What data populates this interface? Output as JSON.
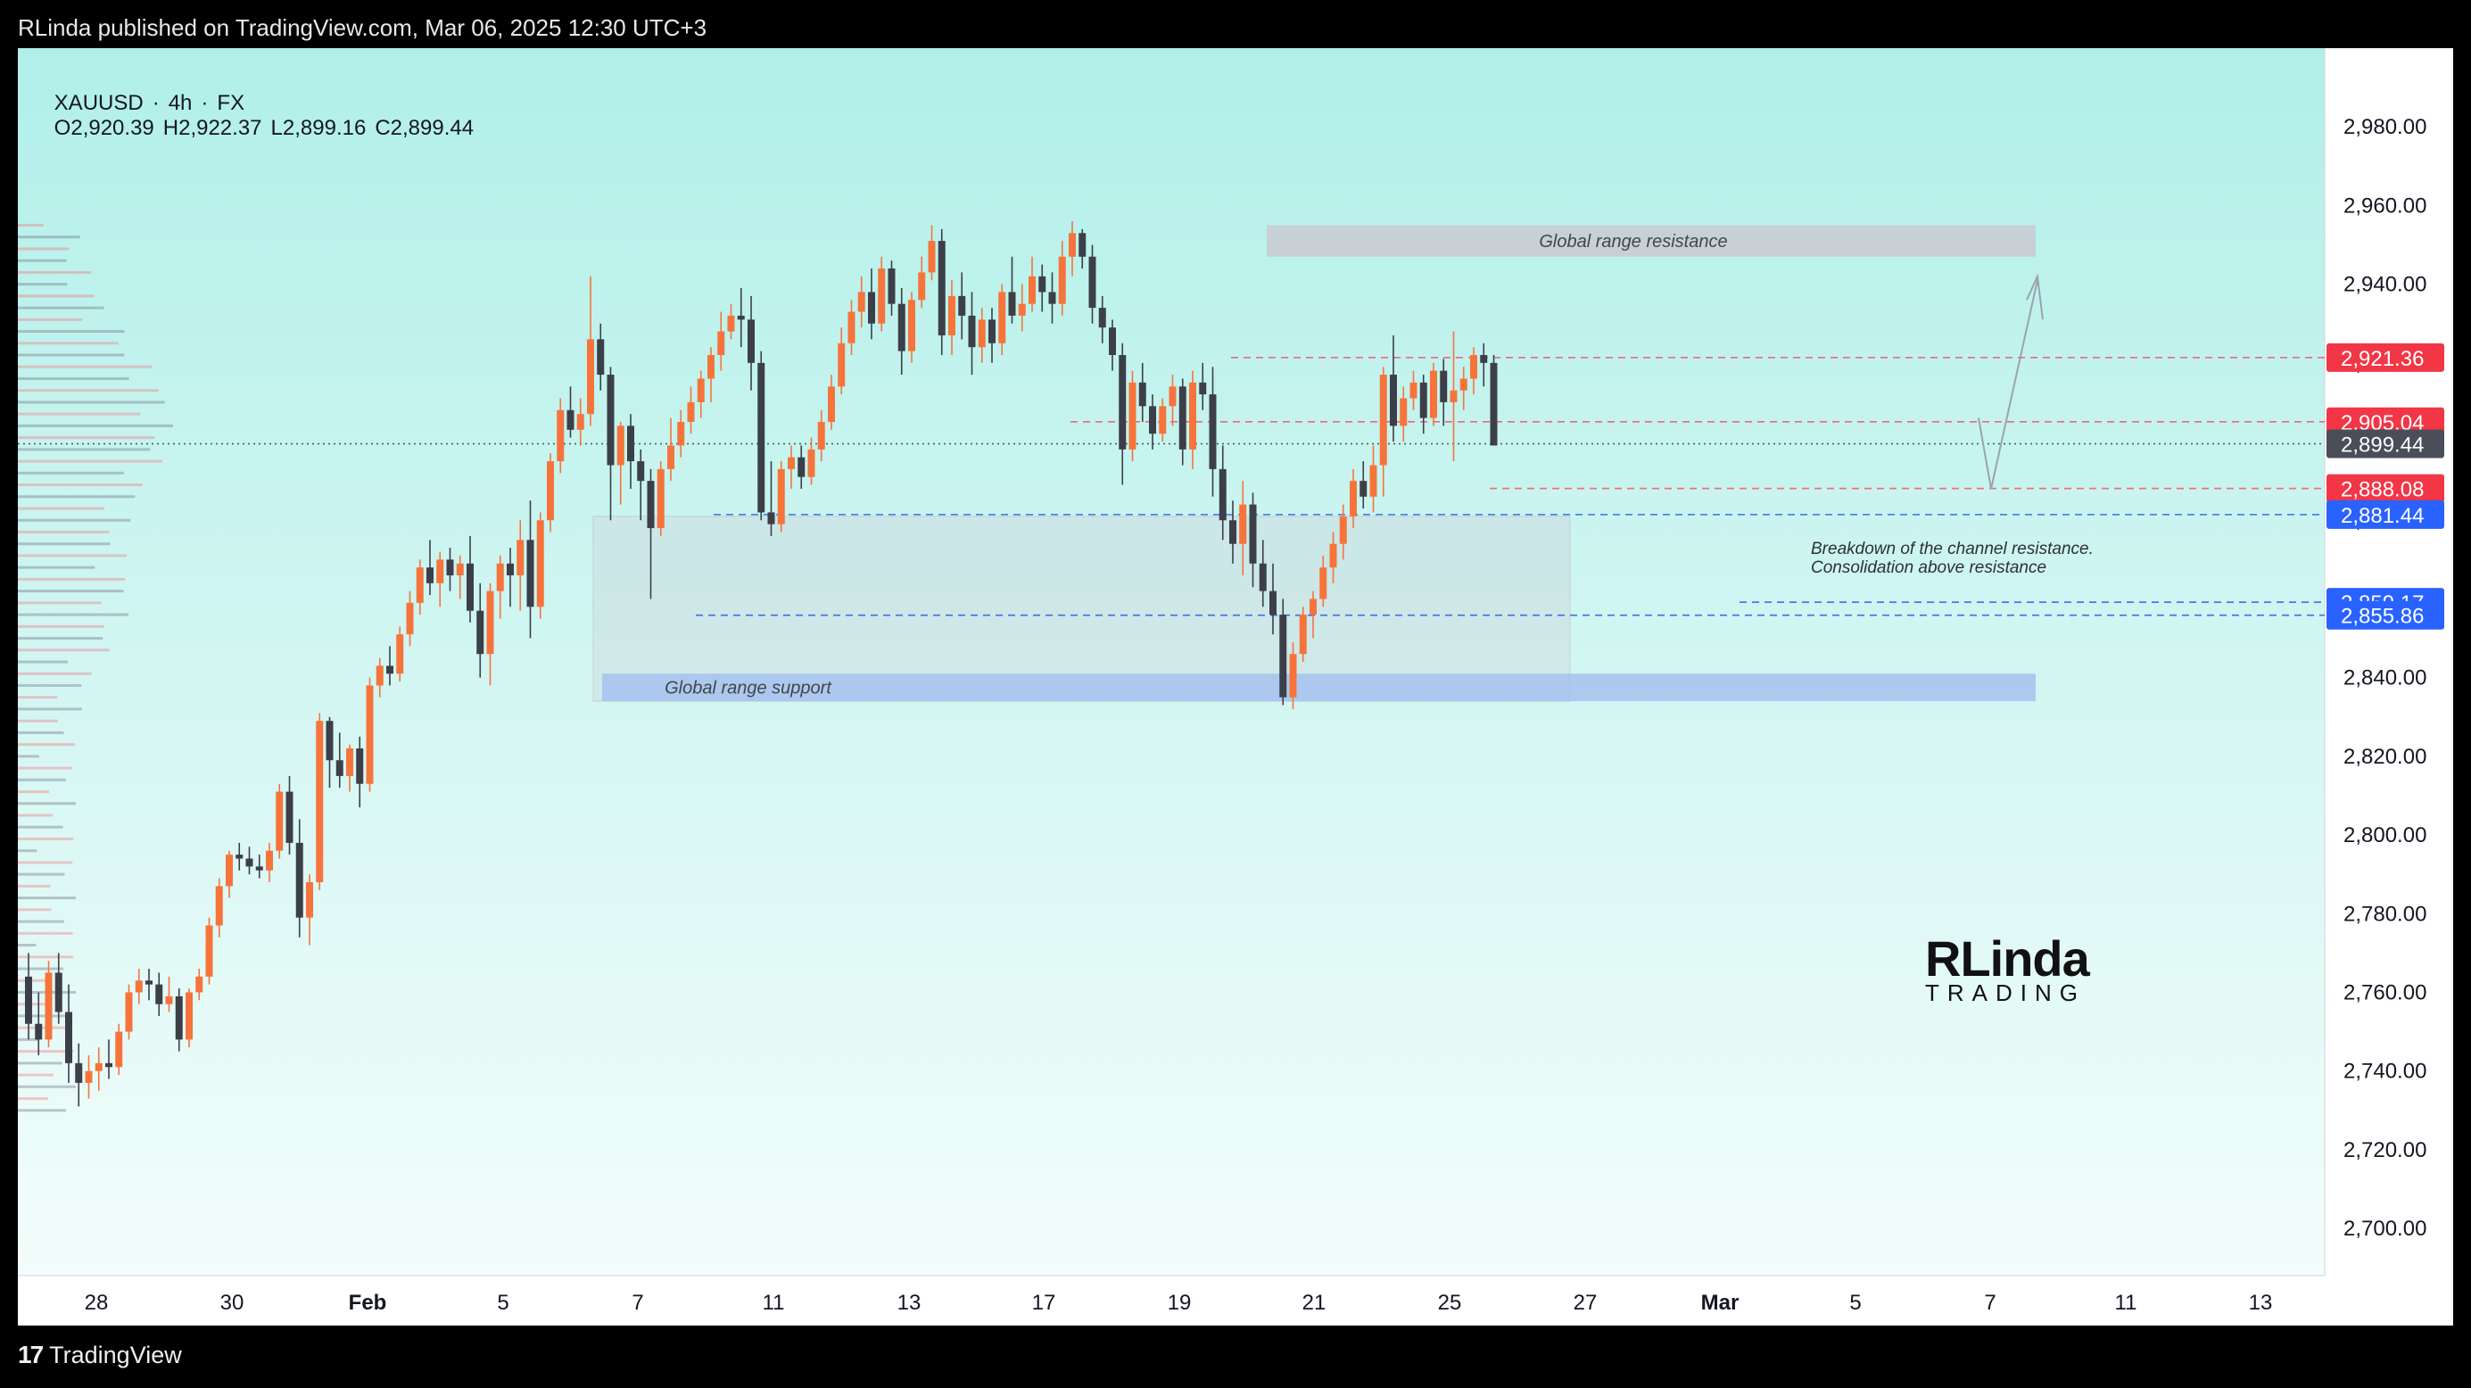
{
  "header": {
    "publish_line": "RLinda published on TradingView.com, Mar 06, 2025 12:30 UTC+3"
  },
  "symbol": {
    "name": "XAUUSD",
    "sep1": "·",
    "timeframe": "4h",
    "sep2": "·",
    "source": "FX",
    "open": "O2,920.39",
    "high": "H2,922.37",
    "low": "L2,899.16",
    "close": "C2,899.44"
  },
  "brand": {
    "big": "RLinda",
    "small": "TRADING"
  },
  "footer": {
    "logo_text": "TradingView",
    "logo_mark": "17"
  },
  "colors": {
    "bg_top": "#b1efe9",
    "bg_bottom": "#f3fdfb",
    "bull": "#f6743b",
    "bear": "#3c3f48",
    "red_badge": "#f23645",
    "blue_badge": "#2962ff",
    "last_badge": "#4a4e59",
    "red_dash": "#f0697a",
    "blue_dash": "#3d6cf0"
  },
  "chart_data": {
    "type": "candlestick",
    "title": "XAUUSD · 4h · FX",
    "ylim": [
      2688,
      3000
    ],
    "y_ticks": [
      "2,700.00",
      "2,720.00",
      "2,740.00",
      "2,760.00",
      "2,780.00",
      "2,800.00",
      "2,820.00",
      "2,840.00",
      "2,860.00",
      "2,880.00",
      "2,900.00",
      "2,920.00",
      "2,940.00",
      "2,960.00",
      "2,980.00"
    ],
    "x_ticks": [
      "28",
      "30",
      "Feb",
      "5",
      "7",
      "11",
      "13",
      "17",
      "19",
      "21",
      "25",
      "27",
      "Mar",
      "5",
      "7",
      "11",
      "13"
    ],
    "zones": [
      {
        "label": "Global range resistance",
        "from_tick": "21",
        "to_tick": "Mar",
        "low": 2947,
        "high": 2955,
        "color": "#c9ccd1"
      },
      {
        "label": "Global range support",
        "from_tick": "7",
        "to_tick": "Mar",
        "low": 2834,
        "high": 2841,
        "color": "#a8c4ee"
      }
    ],
    "consolidation_box": {
      "low": 2834,
      "high": 2881
    },
    "annotations": [
      "Breakdown of the channel resistance.",
      "Consolidation above resistance"
    ],
    "price_levels": [
      {
        "price": 2921.36,
        "label": "2,921.36",
        "kind": "red"
      },
      {
        "price": 2905.04,
        "label": "2,905.04",
        "kind": "red"
      },
      {
        "price": 2899.44,
        "label": "2,899.44",
        "kind": "last"
      },
      {
        "price": 2888.08,
        "label": "2,888.08",
        "kind": "red"
      },
      {
        "price": 2881.44,
        "label": "2,881.44",
        "kind": "blue"
      },
      {
        "price": 2859.17,
        "label": "2,859.17",
        "kind": "blue"
      },
      {
        "price": 2855.86,
        "label": "2,855.86",
        "kind": "blue"
      }
    ],
    "candles": [
      [
        2764,
        2770,
        2748,
        2752
      ],
      [
        2752,
        2760,
        2744,
        2748
      ],
      [
        2748,
        2768,
        2746,
        2765
      ],
      [
        2765,
        2770,
        2752,
        2755
      ],
      [
        2755,
        2762,
        2737,
        2742
      ],
      [
        2742,
        2747,
        2731,
        2737
      ],
      [
        2737,
        2744,
        2733,
        2740
      ],
      [
        2740,
        2746,
        2735,
        2742
      ],
      [
        2742,
        2748,
        2738,
        2741
      ],
      [
        2741,
        2752,
        2739,
        2750
      ],
      [
        2750,
        2762,
        2748,
        2760
      ],
      [
        2760,
        2766,
        2757,
        2763
      ],
      [
        2763,
        2766,
        2758,
        2762
      ],
      [
        2762,
        2765,
        2754,
        2757
      ],
      [
        2757,
        2764,
        2755,
        2759
      ],
      [
        2759,
        2761,
        2745,
        2748
      ],
      [
        2748,
        2761,
        2746,
        2760
      ],
      [
        2760,
        2766,
        2758,
        2764
      ],
      [
        2764,
        2779,
        2762,
        2777
      ],
      [
        2777,
        2789,
        2774,
        2787
      ],
      [
        2787,
        2796,
        2784,
        2795
      ],
      [
        2795,
        2798,
        2791,
        2794
      ],
      [
        2794,
        2797,
        2790,
        2792
      ],
      [
        2792,
        2795,
        2789,
        2791
      ],
      [
        2791,
        2798,
        2788,
        2796
      ],
      [
        2796,
        2813,
        2794,
        2811
      ],
      [
        2811,
        2815,
        2795,
        2798
      ],
      [
        2798,
        2804,
        2774,
        2779
      ],
      [
        2779,
        2790,
        2772,
        2788
      ],
      [
        2788,
        2831,
        2786,
        2829
      ],
      [
        2829,
        2830,
        2812,
        2819
      ],
      [
        2819,
        2826,
        2812,
        2815
      ],
      [
        2815,
        2823,
        2811,
        2822
      ],
      [
        2822,
        2825,
        2807,
        2813
      ],
      [
        2813,
        2840,
        2811,
        2838
      ],
      [
        2838,
        2845,
        2835,
        2843
      ],
      [
        2843,
        2848,
        2838,
        2841
      ],
      [
        2841,
        2853,
        2839,
        2851
      ],
      [
        2851,
        2862,
        2848,
        2859
      ],
      [
        2859,
        2870,
        2856,
        2868
      ],
      [
        2868,
        2875,
        2861,
        2864
      ],
      [
        2864,
        2872,
        2858,
        2870
      ],
      [
        2870,
        2873,
        2862,
        2866
      ],
      [
        2866,
        2871,
        2860,
        2869
      ],
      [
        2869,
        2876,
        2854,
        2857
      ],
      [
        2857,
        2864,
        2840,
        2846
      ],
      [
        2846,
        2864,
        2838,
        2862
      ],
      [
        2862,
        2871,
        2855,
        2869
      ],
      [
        2869,
        2873,
        2858,
        2866
      ],
      [
        2866,
        2880,
        2857,
        2875
      ],
      [
        2875,
        2885,
        2850,
        2858
      ],
      [
        2858,
        2882,
        2855,
        2880
      ],
      [
        2880,
        2897,
        2877,
        2895
      ],
      [
        2895,
        2911,
        2892,
        2908
      ],
      [
        2908,
        2914,
        2901,
        2903
      ],
      [
        2903,
        2911,
        2899,
        2907
      ],
      [
        2907,
        2942,
        2904,
        2926
      ],
      [
        2926,
        2930,
        2913,
        2917
      ],
      [
        2917,
        2919,
        2880,
        2894
      ],
      [
        2894,
        2905,
        2884,
        2904
      ],
      [
        2904,
        2907,
        2888,
        2895
      ],
      [
        2895,
        2898,
        2880,
        2890
      ],
      [
        2890,
        2893,
        2860,
        2878
      ],
      [
        2878,
        2895,
        2876,
        2893
      ],
      [
        2893,
        2906,
        2890,
        2899
      ],
      [
        2899,
        2908,
        2896,
        2905
      ],
      [
        2905,
        2914,
        2902,
        2910
      ],
      [
        2910,
        2918,
        2906,
        2916
      ],
      [
        2916,
        2924,
        2910,
        2922
      ],
      [
        2922,
        2933,
        2918,
        2928
      ],
      [
        2928,
        2935,
        2926,
        2932
      ],
      [
        2932,
        2939,
        2924,
        2931
      ],
      [
        2931,
        2937,
        2913,
        2920
      ],
      [
        2920,
        2923,
        2880,
        2882
      ],
      [
        2882,
        2895,
        2876,
        2879
      ],
      [
        2879,
        2895,
        2877,
        2893
      ],
      [
        2893,
        2899,
        2888,
        2896
      ],
      [
        2896,
        2899,
        2888,
        2891
      ],
      [
        2891,
        2901,
        2889,
        2898
      ],
      [
        2898,
        2908,
        2895,
        2905
      ],
      [
        2905,
        2917,
        2903,
        2914
      ],
      [
        2914,
        2929,
        2912,
        2925
      ],
      [
        2925,
        2936,
        2922,
        2933
      ],
      [
        2933,
        2942,
        2929,
        2938
      ],
      [
        2938,
        2944,
        2926,
        2930
      ],
      [
        2930,
        2947,
        2928,
        2944
      ],
      [
        2944,
        2946,
        2932,
        2935
      ],
      [
        2935,
        2939,
        2917,
        2923
      ],
      [
        2923,
        2938,
        2920,
        2936
      ],
      [
        2936,
        2947,
        2934,
        2943
      ],
      [
        2943,
        2955,
        2941,
        2951
      ],
      [
        2951,
        2954,
        2922,
        2927
      ],
      [
        2927,
        2941,
        2922,
        2937
      ],
      [
        2937,
        2943,
        2926,
        2932
      ],
      [
        2932,
        2938,
        2917,
        2924
      ],
      [
        2924,
        2934,
        2920,
        2931
      ],
      [
        2931,
        2934,
        2920,
        2925
      ],
      [
        2925,
        2940,
        2922,
        2938
      ],
      [
        2938,
        2947,
        2930,
        2932
      ],
      [
        2932,
        2940,
        2928,
        2935
      ],
      [
        2935,
        2947,
        2933,
        2942
      ],
      [
        2942,
        2945,
        2933,
        2938
      ],
      [
        2938,
        2943,
        2930,
        2935
      ],
      [
        2935,
        2951,
        2932,
        2947
      ],
      [
        2947,
        2956,
        2942,
        2953
      ],
      [
        2953,
        2954,
        2944,
        2947
      ],
      [
        2947,
        2950,
        2930,
        2934
      ],
      [
        2934,
        2937,
        2925,
        2929
      ],
      [
        2929,
        2931,
        2918,
        2922
      ],
      [
        2922,
        2925,
        2889,
        2898
      ],
      [
        2898,
        2918,
        2895,
        2915
      ],
      [
        2915,
        2920,
        2905,
        2909
      ],
      [
        2909,
        2912,
        2898,
        2902
      ],
      [
        2902,
        2911,
        2900,
        2909
      ],
      [
        2909,
        2917,
        2904,
        2914
      ],
      [
        2914,
        2916,
        2894,
        2898
      ],
      [
        2898,
        2918,
        2893,
        2915
      ],
      [
        2915,
        2920,
        2908,
        2912
      ],
      [
        2912,
        2919,
        2886,
        2893
      ],
      [
        2893,
        2899,
        2875,
        2880
      ],
      [
        2880,
        2885,
        2869,
        2874
      ],
      [
        2874,
        2890,
        2866,
        2884
      ],
      [
        2884,
        2887,
        2863,
        2869
      ],
      [
        2869,
        2875,
        2858,
        2862
      ],
      [
        2862,
        2869,
        2851,
        2856
      ],
      [
        2856,
        2860,
        2833,
        2835
      ],
      [
        2835,
        2849,
        2832,
        2846
      ],
      [
        2846,
        2858,
        2844,
        2856
      ],
      [
        2856,
        2862,
        2850,
        2860
      ],
      [
        2860,
        2871,
        2858,
        2868
      ],
      [
        2868,
        2877,
        2864,
        2874
      ],
      [
        2874,
        2884,
        2870,
        2881
      ],
      [
        2881,
        2893,
        2878,
        2890
      ],
      [
        2890,
        2895,
        2883,
        2886
      ],
      [
        2886,
        2899,
        2882,
        2894
      ],
      [
        2894,
        2919,
        2886,
        2917
      ],
      [
        2917,
        2927,
        2900,
        2904
      ],
      [
        2904,
        2914,
        2900,
        2911
      ],
      [
        2911,
        2918,
        2908,
        2915
      ],
      [
        2915,
        2917,
        2902,
        2906
      ],
      [
        2906,
        2920,
        2904,
        2918
      ],
      [
        2918,
        2921,
        2904,
        2910
      ],
      [
        2910,
        2928,
        2895,
        2913
      ],
      [
        2913,
        2919,
        2908,
        2916
      ],
      [
        2916,
        2924,
        2912,
        2922
      ],
      [
        2922,
        2925,
        2914,
        2920
      ],
      [
        2920,
        2922,
        2899,
        2899
      ]
    ]
  }
}
